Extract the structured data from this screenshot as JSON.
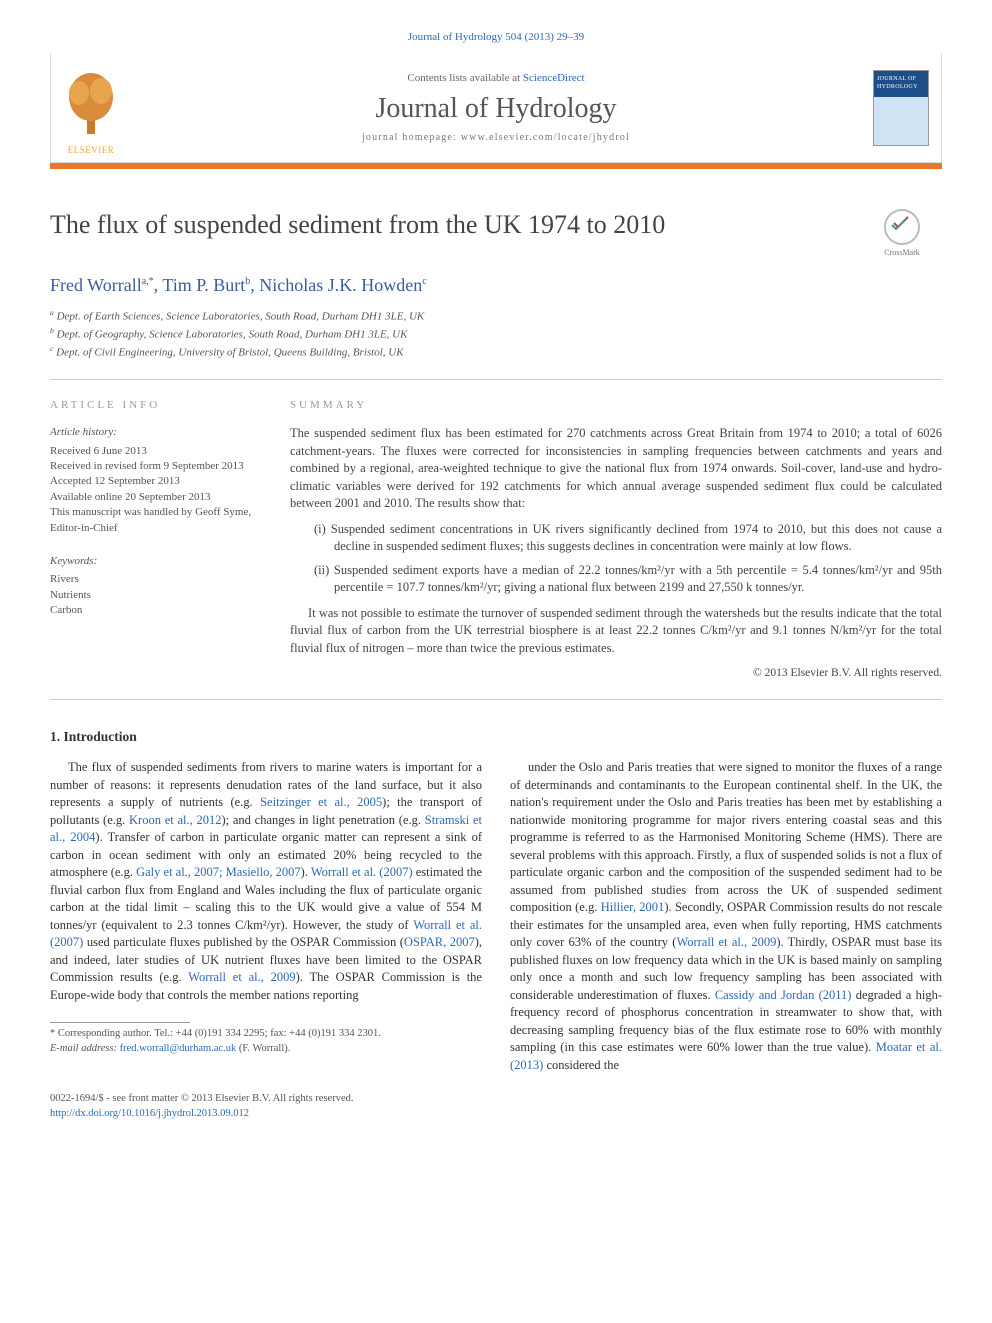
{
  "header": {
    "citation": "Journal of Hydrology 504 (2013) 29–39",
    "contents_prefix": "Contents lists available at ",
    "contents_link": "ScienceDirect",
    "journal_name": "Journal of Hydrology",
    "homepage_label": "journal homepage: ",
    "homepage_url": "www.elsevier.com/locate/jhydrol",
    "publisher_name": "ELSEVIER",
    "cover_label": "JOURNAL OF HYDROLOGY",
    "accent_color": "#e8792b",
    "link_color": "#2a6ab5"
  },
  "crossmark": {
    "label": "CrossMark"
  },
  "article": {
    "title": "The flux of suspended sediment from the UK 1974 to 2010",
    "authors_html": "Fred Worrall",
    "authors": [
      {
        "name": "Fred Worrall",
        "markers": "a,*"
      },
      {
        "name": "Tim P. Burt",
        "markers": "b"
      },
      {
        "name": "Nicholas J.K. Howden",
        "markers": "c"
      }
    ],
    "affiliations": [
      {
        "marker": "a",
        "text": "Dept. of Earth Sciences, Science Laboratories, South Road, Durham DH1 3LE, UK"
      },
      {
        "marker": "b",
        "text": "Dept. of Geography, Science Laboratories, South Road, Durham DH1 3LE, UK"
      },
      {
        "marker": "c",
        "text": "Dept. of Civil Engineering, University of Bristol, Queens Building, Bristol, UK"
      }
    ]
  },
  "article_info": {
    "heading": "ARTICLE INFO",
    "history_label": "Article history:",
    "history": [
      "Received 6 June 2013",
      "Received in revised form 9 September 2013",
      "Accepted 12 September 2013",
      "Available online 20 September 2013",
      "This manuscript was handled by Geoff Syme, Editor-in-Chief"
    ],
    "keywords_label": "Keywords:",
    "keywords": [
      "Rivers",
      "Nutrients",
      "Carbon"
    ]
  },
  "summary": {
    "heading": "SUMMARY",
    "para1": "The suspended sediment flux has been estimated for 270 catchments across Great Britain from 1974 to 2010; a total of 6026 catchment-years. The fluxes were corrected for inconsistencies in sampling frequencies between catchments and years and combined by a regional, area-weighted technique to give the national flux from 1974 onwards. Soil-cover, land-use and hydro-climatic variables were derived for 192 catchments for which annual average suspended sediment flux could be calculated between 2001 and 2010. The results show that:",
    "findings": [
      {
        "marker": "(i)",
        "text": "Suspended sediment concentrations in UK rivers significantly declined from 1974 to 2010, but this does not cause a decline in suspended sediment fluxes; this suggests declines in concentration were mainly at low flows."
      },
      {
        "marker": "(ii)",
        "text": "Suspended sediment exports have a median of 22.2 tonnes/km²/yr with a 5th percentile = 5.4 tonnes/km²/yr and 95th percentile = 107.7 tonnes/km²/yr; giving a national flux between 2199 and 27,550 k tonnes/yr."
      }
    ],
    "para2": "It was not possible to estimate the turnover of suspended sediment through the watersheds but the results indicate that the total fluvial flux of carbon from the UK terrestrial biosphere is at least 22.2 tonnes C/km²/yr and 9.1 tonnes N/km²/yr for the total fluvial flux of nitrogen – more than twice the previous estimates.",
    "copyright": "© 2013 Elsevier B.V. All rights reserved."
  },
  "body": {
    "section_number": "1.",
    "section_title": "Introduction",
    "col1": "The flux of suspended sediments from rivers to marine waters is important for a number of reasons: it represents denudation rates of the land surface, but it also represents a supply of nutrients (e.g. <span class='link'>Seitzinger et al., 2005</span>); the transport of pollutants (e.g. <span class='link'>Kroon et al., 2012</span>); and changes in light penetration (e.g. <span class='link'>Stramski et al., 2004</span>). Transfer of carbon in particulate organic matter can represent a sink of carbon in ocean sediment with only an estimated 20% being recycled to the atmosphere (e.g. <span class='link'>Galy et al., 2007; Masiello, 2007</span>). <span class='link'>Worrall et al. (2007)</span> estimated the fluvial carbon flux from England and Wales including the flux of particulate organic carbon at the tidal limit – scaling this to the UK would give a value of 554 M tonnes/yr (equivalent to 2.3 tonnes C/km²/yr). However, the study of <span class='link'>Worrall et al. (2007)</span> used particulate fluxes published by the OSPAR Commission (<span class='link'>OSPAR, 2007</span>), and indeed, later studies of UK nutrient fluxes have been limited to the OSPAR Commission results (e.g. <span class='link'>Worrall et al., 2009</span>). The OSPAR Commission is the Europe-wide body that controls the member nations reporting",
    "col2": "under the Oslo and Paris treaties that were signed to monitor the fluxes of a range of determinands and contaminants to the European continental shelf. In the UK, the nation's requirement under the Oslo and Paris treaties has been met by establishing a nationwide monitoring programme for major rivers entering coastal seas and this programme is referred to as the Harmonised Monitoring Scheme (HMS). There are several problems with this approach. Firstly, a flux of suspended solids is not a flux of particulate organic carbon and the composition of the suspended sediment had to be assumed from published studies from across the UK of suspended sediment composition (e.g. <span class='link'>Hillier, 2001</span>). Secondly, OSPAR Commission results do not rescale their estimates for the unsampled area, even when fully reporting, HMS catchments only cover 63% of the country (<span class='link'>Worrall et al., 2009</span>). Thirdly, OSPAR must base its published fluxes on low frequency data which in the UK is based mainly on sampling only once a month and such low frequency sampling has been associated with considerable underestimation of fluxes. <span class='link'>Cassidy and Jordan (2011)</span> degraded a high-frequency record of phosphorus concentration in streamwater to show that, with decreasing sampling frequency bias of the flux estimate rose to 60% with monthly sampling (in this case estimates were 60% lower than the true value). <span class='link'>Moatar et al. (2013)</span> considered the"
  },
  "footnotes": {
    "corr_marker": "*",
    "corr_text": "Corresponding author. Tel.: +44 (0)191 334 2295; fax: +44 (0)191 334 2301.",
    "email_label": "E-mail address:",
    "email": "fred.worrall@durham.ac.uk",
    "email_owner": "(F. Worrall)."
  },
  "bottom": {
    "issn": "0022-1694/$ - see front matter © 2013 Elsevier B.V. All rights reserved.",
    "doi_label": "http://dx.doi.org/",
    "doi": "10.1016/j.jhydrol.2013.09.012"
  }
}
